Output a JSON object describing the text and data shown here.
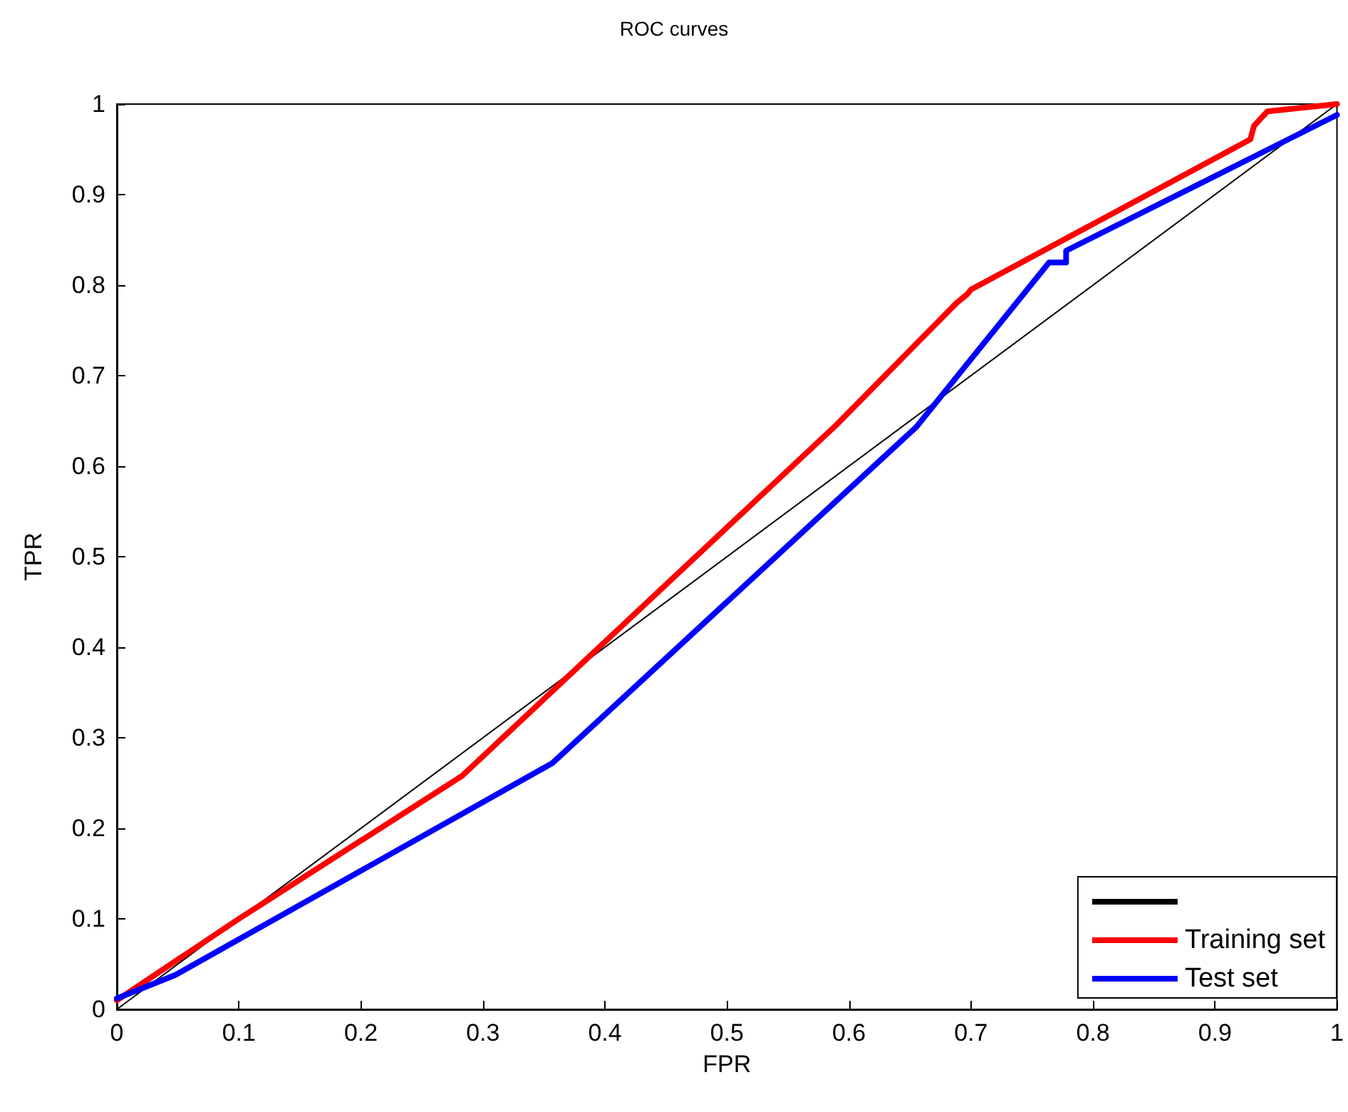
{
  "chart_data": {
    "type": "line",
    "title": "ROC curves",
    "xlabel": "FPR",
    "ylabel": "TPR",
    "xlim": [
      0,
      1
    ],
    "ylim": [
      0,
      1
    ],
    "xticks": [
      0,
      0.1,
      0.2,
      0.3,
      0.4,
      0.5,
      0.6,
      0.7,
      0.8,
      0.9,
      1
    ],
    "yticks": [
      0,
      0.1,
      0.2,
      0.3,
      0.4,
      0.5,
      0.6,
      0.7,
      0.8,
      0.9,
      1
    ],
    "grid": false,
    "legend": "bottom right",
    "marker": "none",
    "line_style": "solid",
    "series": [
      {
        "color": "#000000",
        "x": [
          0,
          1
        ],
        "values": [
          0,
          1
        ]
      },
      {
        "name": "Training set",
        "color": "#ff0000",
        "x": [
          0,
          0.05,
          0.1,
          0.283,
          0.59,
          0.688,
          0.697,
          0.7,
          0.929,
          0.932,
          0.943,
          1
        ],
        "values": [
          0.01,
          0.055,
          0.1,
          0.258,
          0.646,
          0.78,
          0.79,
          0.795,
          0.961,
          0.976,
          0.992,
          1
        ]
      },
      {
        "name": "Test set",
        "color": "#0000ff",
        "x": [
          0,
          0.048,
          0.357,
          0.655,
          0.764,
          0.778,
          0.778,
          1
        ],
        "values": [
          0.012,
          0.038,
          0.272,
          0.643,
          0.825,
          0.825,
          0.838,
          0.988
        ]
      }
    ]
  }
}
